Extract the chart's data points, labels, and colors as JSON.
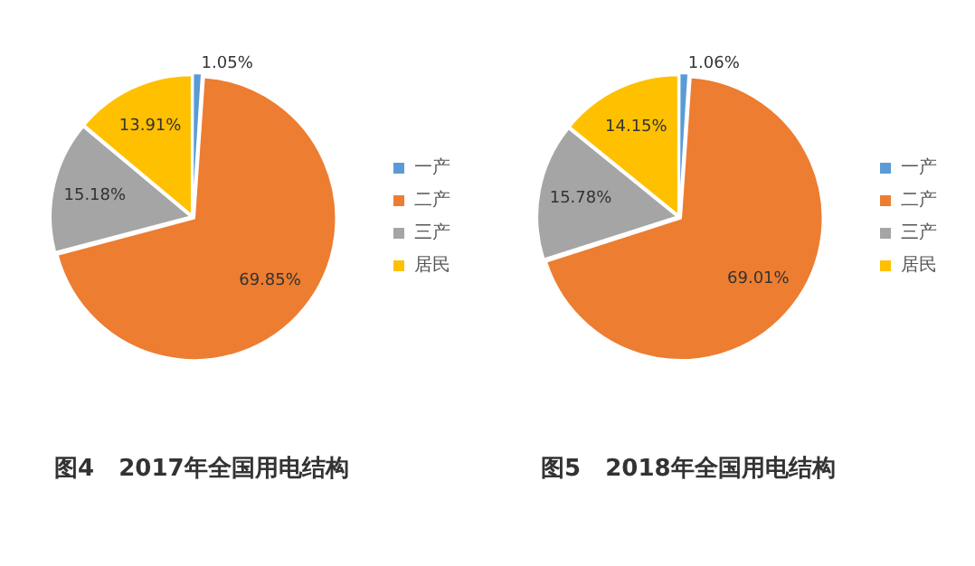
{
  "chart_data": [
    {
      "type": "pie",
      "title": "图4   2017年全国用电结构",
      "categories": [
        "一产",
        "二产",
        "三产",
        "居民"
      ],
      "values": [
        1.05,
        69.85,
        15.18,
        13.91
      ],
      "colors": [
        "#5b9bd5",
        "#ed7d31",
        "#a5a5a5",
        "#ffc000"
      ],
      "value_labels": [
        "1.05%",
        "69.85%",
        "15.18%",
        "13.91%"
      ],
      "legend": "right"
    },
    {
      "type": "pie",
      "title": "图5   2018年全国用电结构",
      "categories": [
        "一产",
        "二产",
        "三产",
        "居民"
      ],
      "values": [
        1.06,
        69.01,
        15.78,
        14.15
      ],
      "colors": [
        "#5b9bd5",
        "#ed7d31",
        "#a5a5a5",
        "#ffc000"
      ],
      "value_labels": [
        "1.06%",
        "69.01%",
        "15.78%",
        "14.15%"
      ],
      "legend": "right"
    }
  ]
}
